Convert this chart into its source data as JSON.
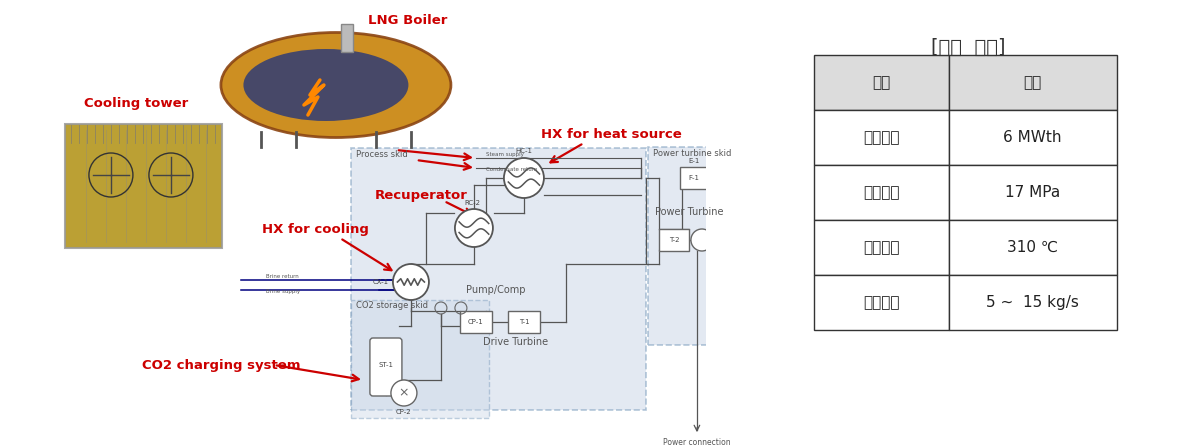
{
  "title_bracket": "[열원  사양]",
  "table_header": [
    "항목",
    "사양"
  ],
  "table_rows": [
    [
      "열원용량",
      "6 MWth"
    ],
    [
      "설계압력",
      "17 MPa"
    ],
    [
      "설계온도",
      "310 ℃"
    ],
    [
      "유량범위",
      "5 ~  15 kg/s"
    ]
  ],
  "header_bg": "#dcdcdc",
  "bg_color": "#ffffff",
  "label_lng": "LNG Boiler",
  "label_cooling": "Cooling tower",
  "label_hx_heat": "HX for heat source",
  "label_recuperator": "Recuperator",
  "label_hx_cooling": "HX for cooling",
  "label_co2": "CO2 charging system",
  "label_pump": "Pump/Comp",
  "label_power_turbine": "Power Turbine",
  "label_drive_turbine": "Drive Turbine",
  "label_process_skid": "Process skid",
  "label_power_turbine_skid": "Power turbine skid",
  "label_co2_storage_skid": "CO2 storage skid",
  "label_power_connection": "Power connection",
  "red_color": "#cc0000",
  "dark_blue": "#000080",
  "skid_bg": "#ccd8e8",
  "skid_border": "#7799bb",
  "line_color": "#555555"
}
